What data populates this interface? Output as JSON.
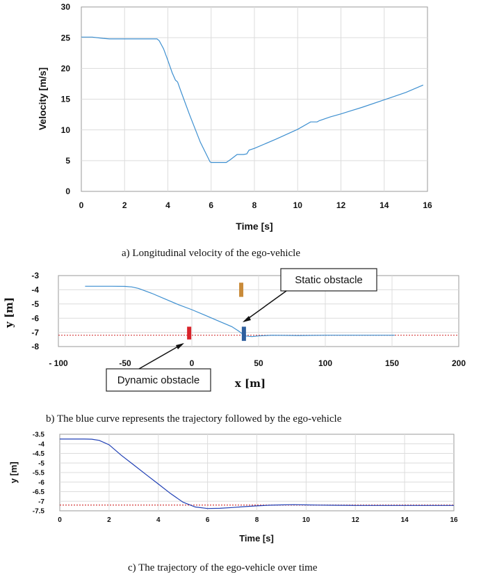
{
  "captions": {
    "a": "a) Longitudinal velocity of the ego-vehicle",
    "b": "b) The blue curve represents the trajectory followed by the ego-vehicle",
    "c": "c) The trajectory of the ego-vehicle over time"
  },
  "colors": {
    "line": "#3d8fd0",
    "line_dark": "#1f3fb5",
    "reference": "#d43a3a",
    "static_obstacle": "#c98b3a",
    "dynamic_obstacle": "#d8232a",
    "ego_marker": "#2e5f9e",
    "grid": "#dcdcdc"
  },
  "chart_data": [
    {
      "type": "line",
      "xlabel": "Time [s]",
      "ylabel": "Velocity [m/s]",
      "xlim": [
        0,
        16
      ],
      "ylim": [
        0,
        30
      ],
      "xticks": [
        "0",
        "2",
        "4",
        "6",
        "8",
        "10",
        "12",
        "14",
        "16"
      ],
      "yticks": [
        "0",
        "5",
        "10",
        "15",
        "20",
        "25",
        "30"
      ],
      "grid": true,
      "series": [
        {
          "x": [
            0,
            0.5,
            1.0,
            1.3,
            1.5,
            2,
            2.5,
            3,
            3.5,
            3.6,
            3.8,
            4.0,
            4.2,
            4.35,
            4.45,
            4.6,
            5.0,
            5.5,
            5.95,
            6.0,
            6.5,
            6.7,
            6.9,
            7.2,
            7.5,
            7.65,
            7.75,
            8.0,
            9.0,
            10.0,
            10.6,
            10.9,
            11.0,
            11.5,
            12,
            13,
            14,
            15,
            15.8
          ],
          "y": [
            25.1,
            25.1,
            24.9,
            24.8,
            24.8,
            24.8,
            24.8,
            24.8,
            24.8,
            24.5,
            23.2,
            21.3,
            19.3,
            18.1,
            17.8,
            16.3,
            12.5,
            8.0,
            4.8,
            4.7,
            4.7,
            4.7,
            5.2,
            6.0,
            6.0,
            6.1,
            6.7,
            7.0,
            8.5,
            10.1,
            11.3,
            11.3,
            11.5,
            12.1,
            12.6,
            13.7,
            14.9,
            16.1,
            17.3
          ]
        }
      ]
    },
    {
      "type": "line",
      "xlabel": "x [m]",
      "ylabel": "y [m]",
      "xlim": [
        -100,
        200
      ],
      "ylim": [
        -8,
        -3
      ],
      "xticks": [
        "- 100",
        "-50",
        "0",
        "50",
        "100",
        "150",
        "200"
      ],
      "yticks": [
        "-3",
        "-4",
        "-5",
        "-6",
        "-7",
        "-8"
      ],
      "grid": true,
      "reference_y": -7.2,
      "annotations": [
        {
          "label": "Static obstacle",
          "x": 37,
          "y_range": [
            -4.5,
            -3.5
          ]
        },
        {
          "label": "Dynamic obstacle",
          "x": -2,
          "y_range": [
            -7.5,
            -6.6
          ]
        }
      ],
      "ego_marker": {
        "x": 39,
        "y_range": [
          -7.6,
          -6.6
        ]
      },
      "series": [
        {
          "x": [
            -80,
            -70,
            -60,
            -50,
            -45,
            -40,
            -30,
            -20,
            -10,
            0,
            10,
            20,
            30,
            35,
            40,
            45,
            50,
            60,
            80,
            100,
            120,
            140,
            152
          ],
          "y": [
            -3.75,
            -3.75,
            -3.75,
            -3.76,
            -3.8,
            -3.9,
            -4.25,
            -4.65,
            -5.05,
            -5.4,
            -5.8,
            -6.2,
            -6.6,
            -6.9,
            -7.25,
            -7.3,
            -7.25,
            -7.2,
            -7.22,
            -7.2,
            -7.2,
            -7.2,
            -7.2
          ]
        }
      ]
    },
    {
      "type": "line",
      "xlabel": "Time [s]",
      "ylabel": "y [m]",
      "xlim": [
        0,
        16
      ],
      "ylim": [
        -7.5,
        -3.5
      ],
      "xticks": [
        "0",
        "2",
        "4",
        "6",
        "8",
        "10",
        "12",
        "14",
        "16"
      ],
      "yticks": [
        "-3.5",
        "-4",
        "-4.5",
        "-5",
        "-5.5",
        "-6",
        "-6.5",
        "-7",
        "-7.5"
      ],
      "grid": true,
      "reference_y": -7.2,
      "series": [
        {
          "x": [
            0,
            0.5,
            1.0,
            1.3,
            1.6,
            2.0,
            2.5,
            3.0,
            3.5,
            4.0,
            4.5,
            5.0,
            5.5,
            6.0,
            6.5,
            7.0,
            7.5,
            8.0,
            8.5,
            9.0,
            9.5,
            10.0,
            10.5,
            11,
            12,
            13,
            14,
            15,
            16
          ],
          "y": [
            -3.75,
            -3.75,
            -3.75,
            -3.76,
            -3.82,
            -4.05,
            -4.6,
            -5.1,
            -5.6,
            -6.1,
            -6.6,
            -7.05,
            -7.3,
            -7.38,
            -7.37,
            -7.33,
            -7.28,
            -7.24,
            -7.21,
            -7.19,
            -7.18,
            -7.19,
            -7.2,
            -7.21,
            -7.22,
            -7.22,
            -7.22,
            -7.22,
            -7.22
          ]
        }
      ]
    }
  ]
}
